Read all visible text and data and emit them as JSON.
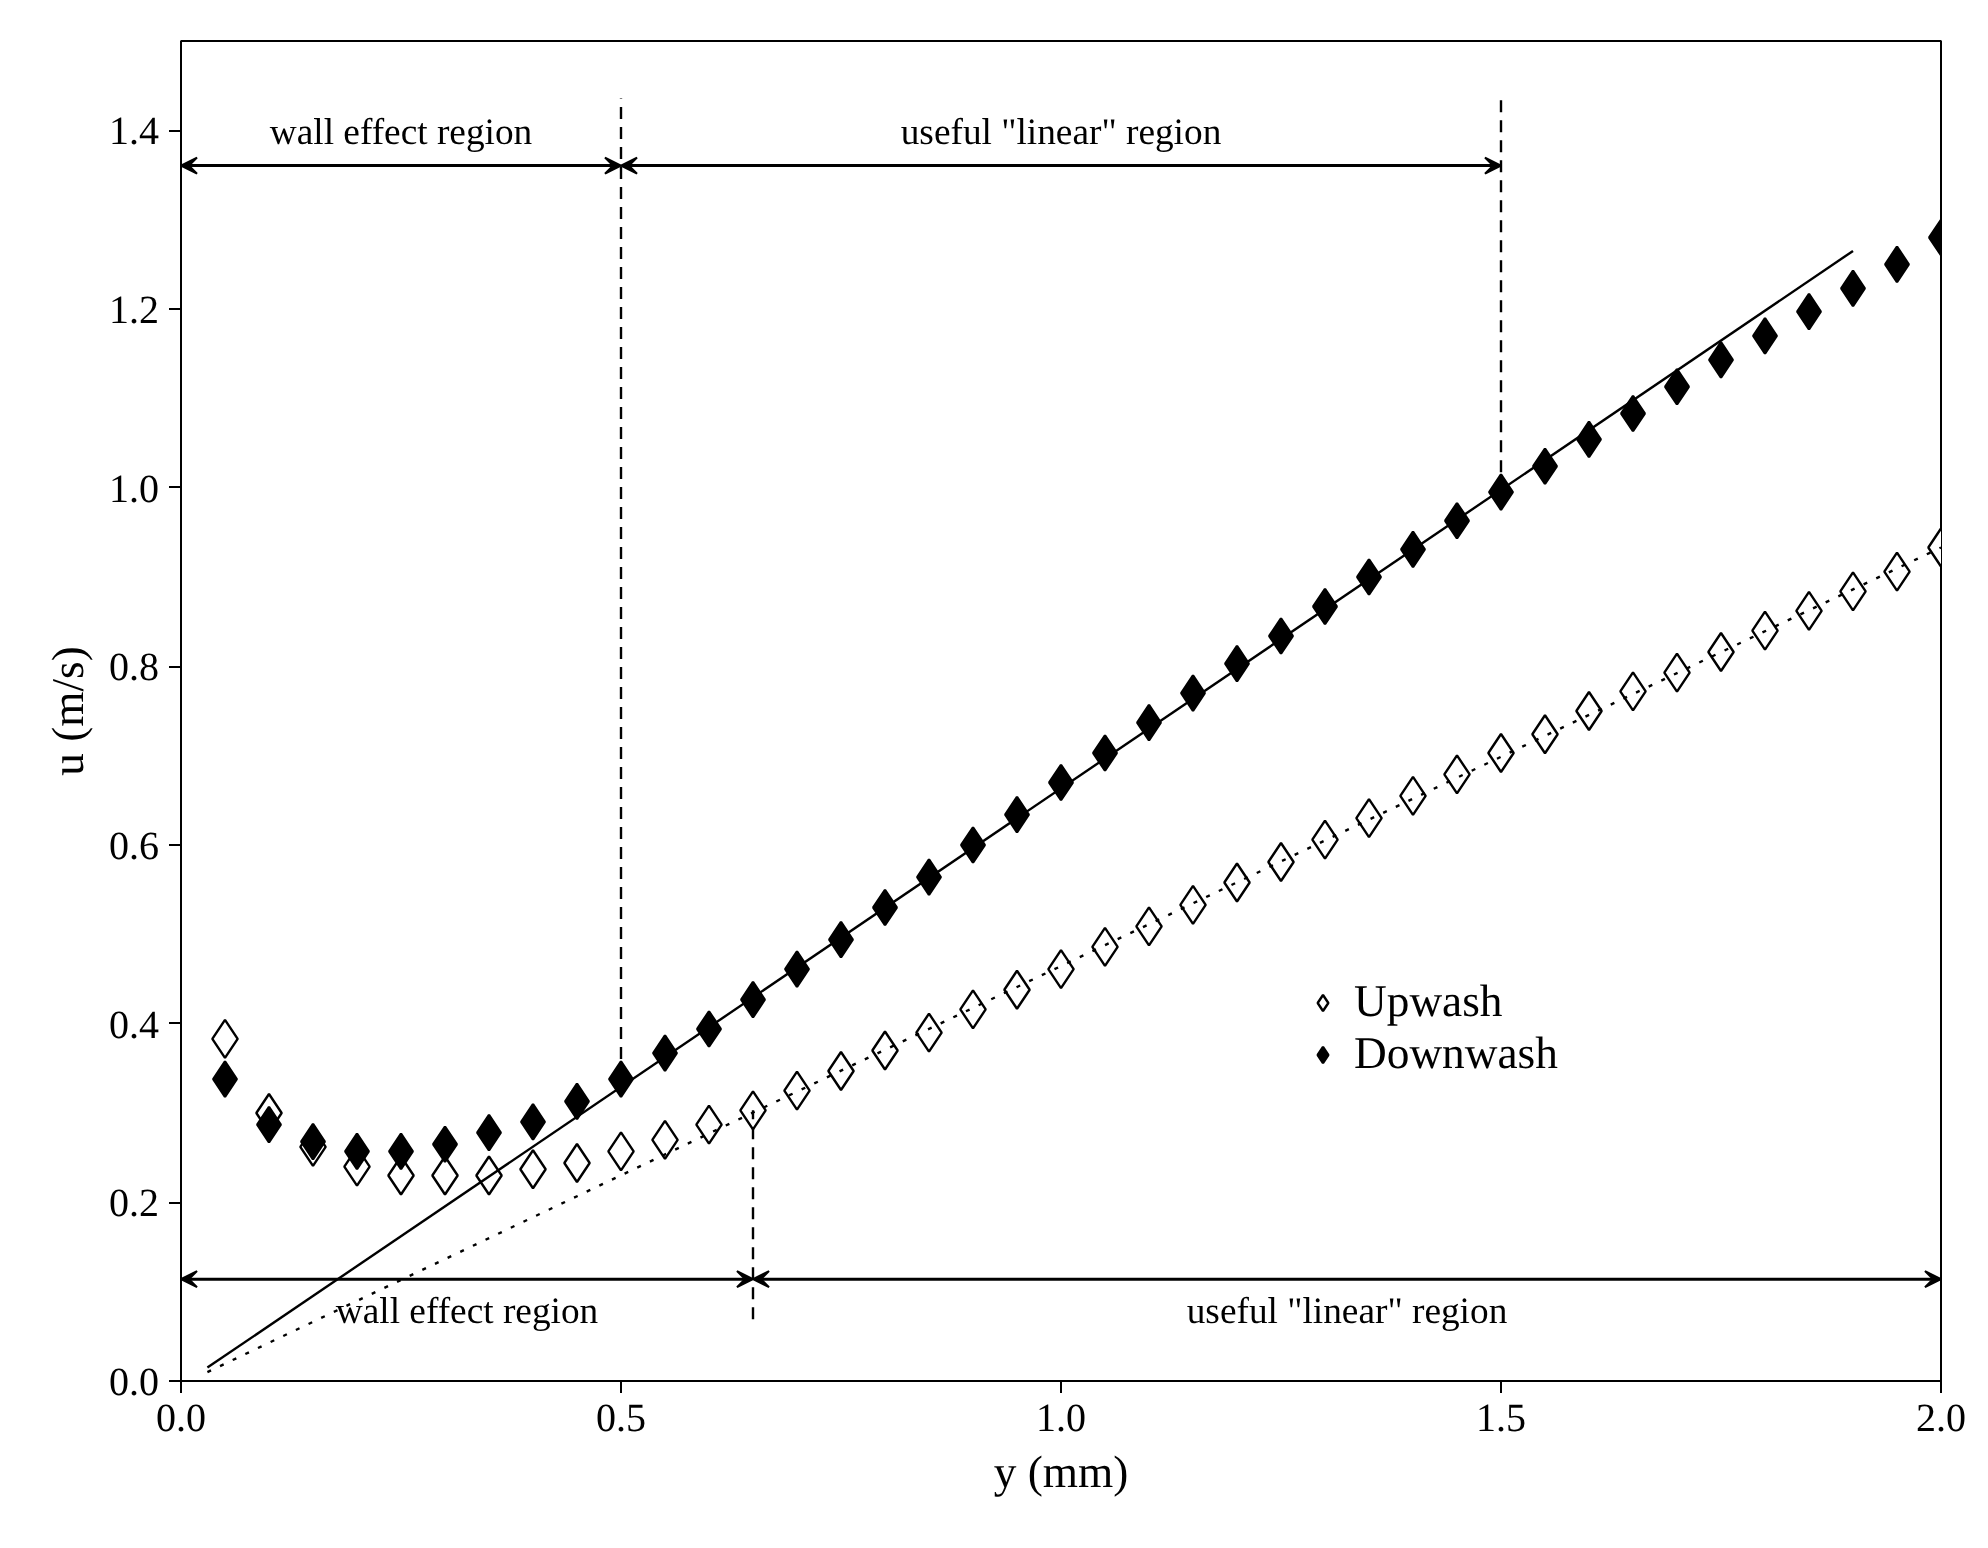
{
  "chart_data": {
    "type": "scatter",
    "xlabel": "y (mm)",
    "ylabel": "u (m/s)",
    "xlim": [
      0,
      2.0
    ],
    "ylim": [
      0,
      1.5
    ],
    "xticks": [
      {
        "value": 0,
        "label": "0.0"
      },
      0.5,
      {
        "value": 1,
        "label": "1.0"
      },
      1.5,
      {
        "value": 2,
        "label": "2.0"
      }
    ],
    "yticks": [
      {
        "value": 0,
        "label": "0.0"
      },
      0.2,
      0.4,
      0.6,
      0.8,
      {
        "value": 1,
        "label": "1.0"
      },
      1.2,
      1.4
    ],
    "grid": false,
    "legend": "bottom right",
    "marker": "diamond",
    "x": [
      0.05,
      0.1,
      0.15,
      0.2,
      0.25,
      0.3,
      0.35,
      0.4,
      0.45,
      0.5,
      0.55,
      0.6,
      0.65,
      0.7,
      0.75,
      0.8,
      0.85,
      0.9,
      0.95,
      1.0,
      1.05,
      1.1,
      1.15,
      1.2,
      1.25,
      1.3,
      1.35,
      1.4,
      1.45,
      1.5,
      1.55,
      1.6,
      1.65,
      1.7,
      1.75,
      1.8,
      1.85,
      1.9,
      1.95,
      2.0
    ],
    "series": [
      {
        "name": "Upwash",
        "color": "#ffffff",
        "values": [
          0.383,
          0.3,
          0.262,
          0.24,
          0.23,
          0.23,
          0.23,
          0.237,
          0.244,
          0.257,
          0.27,
          0.287,
          0.303,
          0.325,
          0.347,
          0.37,
          0.39,
          0.416,
          0.438,
          0.461,
          0.486,
          0.509,
          0.533,
          0.558,
          0.581,
          0.606,
          0.63,
          0.655,
          0.679,
          0.703,
          0.724,
          0.75,
          0.772,
          0.793,
          0.816,
          0.84,
          0.862,
          0.884,
          0.906,
          0.933
        ]
      },
      {
        "name": "Downwash",
        "color": "#000000",
        "values": [
          0.338,
          0.287,
          0.268,
          0.257,
          0.257,
          0.265,
          0.278,
          0.29,
          0.313,
          0.338,
          0.367,
          0.394,
          0.427,
          0.461,
          0.494,
          0.53,
          0.564,
          0.6,
          0.634,
          0.67,
          0.703,
          0.737,
          0.77,
          0.803,
          0.834,
          0.867,
          0.9,
          0.931,
          0.963,
          0.995,
          1.024,
          1.054,
          1.083,
          1.113,
          1.143,
          1.17,
          1.197,
          1.223,
          1.25,
          1.28
        ]
      },
      {
        "type": "line",
        "color": "#000000",
        "line_style": "solid",
        "marker": "none",
        "x": [
          0.03,
          1.9
        ],
        "values": [
          0.015,
          1.265
        ]
      },
      {
        "type": "line",
        "color": "#000000",
        "line_style": "dotted",
        "marker": "none",
        "x": [
          0.03,
          2.0
        ],
        "values": [
          0.01,
          0.933
        ]
      }
    ],
    "ref_lines": [
      {
        "axis": "x",
        "value": 0.5,
        "line_style": "dashed"
      },
      {
        "axis": "x",
        "value": 1.5,
        "line_style": "dashed"
      },
      {
        "axis": "x",
        "value": 0.65,
        "line_style": "dashed"
      }
    ],
    "annotations": [
      "wall effect region",
      "useful \"linear\" region",
      "wall effect region",
      "useful \"linear\" region"
    ]
  }
}
